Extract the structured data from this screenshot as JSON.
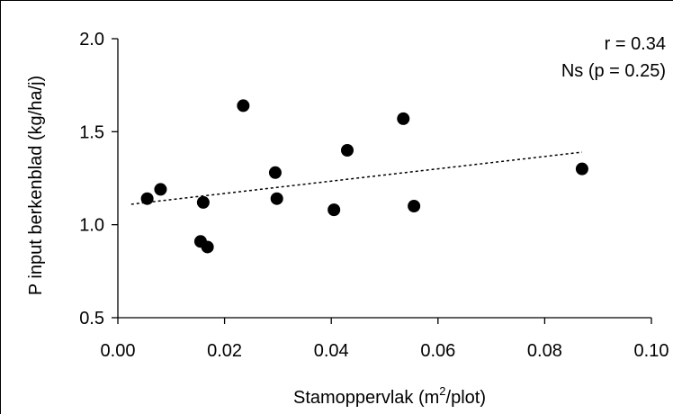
{
  "chart_data": {
    "type": "scatter",
    "title": "",
    "xlabel": "Stamoppervlak (m",
    "xlabel_sup": "2",
    "xlabel_tail": "/plot)",
    "ylabel": "P input berkenblad (kg/ha/j)",
    "xlim": [
      0.0,
      0.1
    ],
    "ylim": [
      0.5,
      2.0
    ],
    "x_ticks": [
      "0.00",
      "0.02",
      "0.04",
      "0.06",
      "0.08",
      "0.10"
    ],
    "y_ticks": [
      "0.5",
      "1.0",
      "1.5",
      "2.0"
    ],
    "grid": false,
    "legend": "none",
    "points": [
      {
        "x": 0.0055,
        "y": 1.14
      },
      {
        "x": 0.008,
        "y": 1.19
      },
      {
        "x": 0.0155,
        "y": 0.91
      },
      {
        "x": 0.016,
        "y": 1.12
      },
      {
        "x": 0.0168,
        "y": 0.88
      },
      {
        "x": 0.0235,
        "y": 1.64
      },
      {
        "x": 0.0295,
        "y": 1.28
      },
      {
        "x": 0.0298,
        "y": 1.14
      },
      {
        "x": 0.0405,
        "y": 1.08
      },
      {
        "x": 0.043,
        "y": 1.4
      },
      {
        "x": 0.0535,
        "y": 1.57
      },
      {
        "x": 0.0555,
        "y": 1.1
      },
      {
        "x": 0.087,
        "y": 1.3
      }
    ],
    "trendline": {
      "x": [
        0.0025,
        0.087
      ],
      "y": [
        1.11,
        1.39
      ]
    },
    "annotations": [
      "r = 0.34",
      "Ns (p = 0.25)"
    ],
    "marker_color": "#000000"
  }
}
